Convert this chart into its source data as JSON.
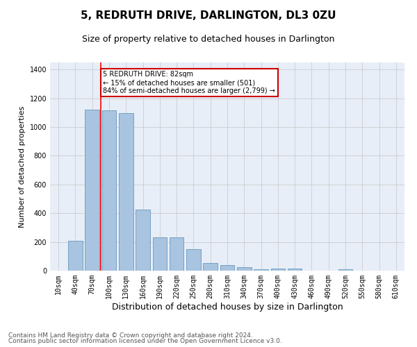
{
  "title": "5, REDRUTH DRIVE, DARLINGTON, DL3 0ZU",
  "subtitle": "Size of property relative to detached houses in Darlington",
  "xlabel": "Distribution of detached houses by size in Darlington",
  "ylabel": "Number of detached properties",
  "categories": [
    "10sqm",
    "40sqm",
    "70sqm",
    "100sqm",
    "130sqm",
    "160sqm",
    "190sqm",
    "220sqm",
    "250sqm",
    "280sqm",
    "310sqm",
    "340sqm",
    "370sqm",
    "400sqm",
    "430sqm",
    "460sqm",
    "490sqm",
    "520sqm",
    "550sqm",
    "580sqm",
    "610sqm"
  ],
  "values": [
    0,
    208,
    1120,
    1115,
    1095,
    425,
    232,
    232,
    148,
    55,
    38,
    25,
    12,
    15,
    15,
    0,
    0,
    12,
    0,
    0,
    0
  ],
  "bar_color": "#a8c4e0",
  "bar_edge_color": "#6699bb",
  "red_line_bin": 2,
  "annotation_text": "5 REDRUTH DRIVE: 82sqm\n← 15% of detached houses are smaller (501)\n84% of semi-detached houses are larger (2,799) →",
  "annotation_box_color": "#ffffff",
  "annotation_box_edge_color": "#cc0000",
  "ylim": [
    0,
    1450
  ],
  "yticks": [
    0,
    200,
    400,
    600,
    800,
    1000,
    1200,
    1400
  ],
  "grid_color": "#cccccc",
  "bg_color": "#e8eef8",
  "footer_line1": "Contains HM Land Registry data © Crown copyright and database right 2024.",
  "footer_line2": "Contains public sector information licensed under the Open Government Licence v3.0.",
  "title_fontsize": 11,
  "subtitle_fontsize": 9,
  "xlabel_fontsize": 9,
  "ylabel_fontsize": 8,
  "tick_fontsize": 7,
  "footer_fontsize": 6.5
}
